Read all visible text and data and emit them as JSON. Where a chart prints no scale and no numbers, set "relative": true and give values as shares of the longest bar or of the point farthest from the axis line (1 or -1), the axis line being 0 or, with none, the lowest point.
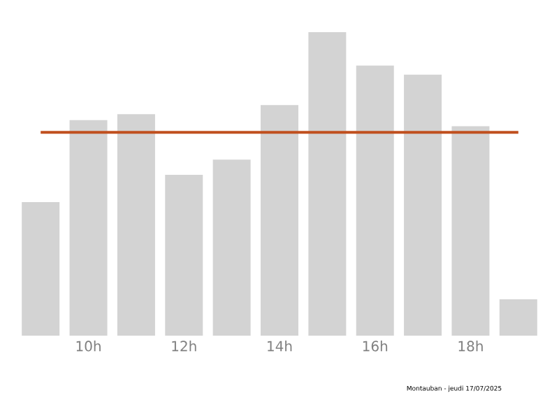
{
  "chart_data": {
    "type": "bar",
    "relative": true,
    "categories": [
      null,
      "10h",
      null,
      "12h",
      null,
      "14h",
      null,
      "16h",
      null,
      "18h",
      null
    ],
    "values": [
      0.44,
      0.71,
      0.73,
      0.53,
      0.58,
      0.76,
      1,
      0.89,
      0.86,
      0.69,
      0.12
    ],
    "color": "#d3d3d3",
    "ref_lines": [
      {
        "axis": "y",
        "value": 0.67,
        "color": "#c0501f"
      }
    ],
    "annotations": [
      "Montauban - jeudi 17/07/2025"
    ]
  }
}
